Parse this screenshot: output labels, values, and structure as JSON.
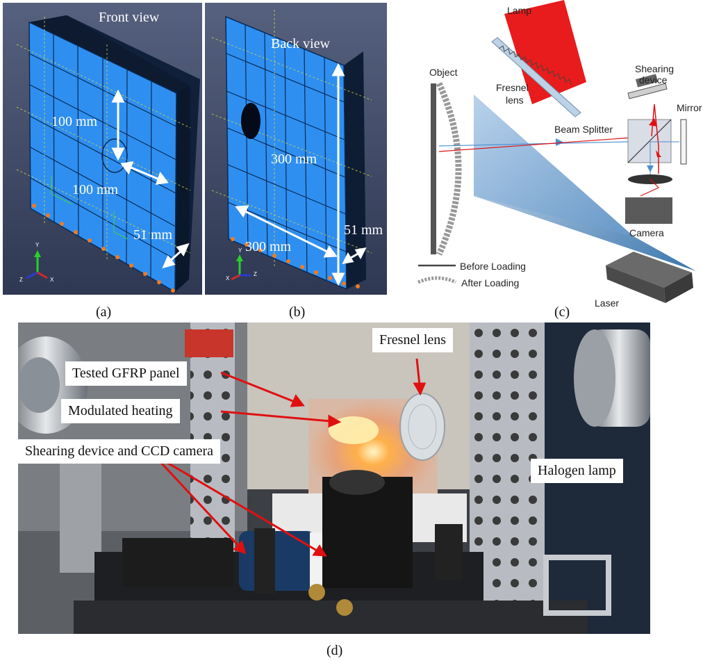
{
  "captions": {
    "a": "(a)",
    "b": "(b)",
    "c": "(c)",
    "d": "(d)"
  },
  "panel_a": {
    "title": "Front view",
    "dim1": "100 mm",
    "dim2": "100 mm",
    "dim3": "51 mm",
    "triad": {
      "y": "Y",
      "z": "Z",
      "x": "X"
    }
  },
  "panel_b": {
    "title": "Back view",
    "dim1": "300 mm",
    "dim2": "300 mm",
    "dim3": "51 mm",
    "triad": {
      "y": "Y",
      "z": "Z",
      "x": "X"
    }
  },
  "panel_c": {
    "lamp": "Lamp",
    "fresnel": [
      "Fresnel",
      "lens"
    ],
    "object": "Object",
    "shearing": [
      "Shearing",
      "device"
    ],
    "mirror": "Mirror",
    "beam_splitter": "Beam Splitter",
    "camera": "Camera",
    "before": "Before Loading",
    "after": "After  Loading",
    "laser": "Laser"
  },
  "panel_d": {
    "fresnel": "Fresnel lens",
    "panel": "Tested GFRP panel",
    "heating": "Modulated heating",
    "shearing": "Shearing device and CCD camera",
    "halogen": "Halogen lamp"
  },
  "colors": {
    "fem_blue": "#2f8ff0",
    "fem_bg": "#3f4a66",
    "arrow_red": "#e01010",
    "lamp_red": "#e81c1c"
  }
}
